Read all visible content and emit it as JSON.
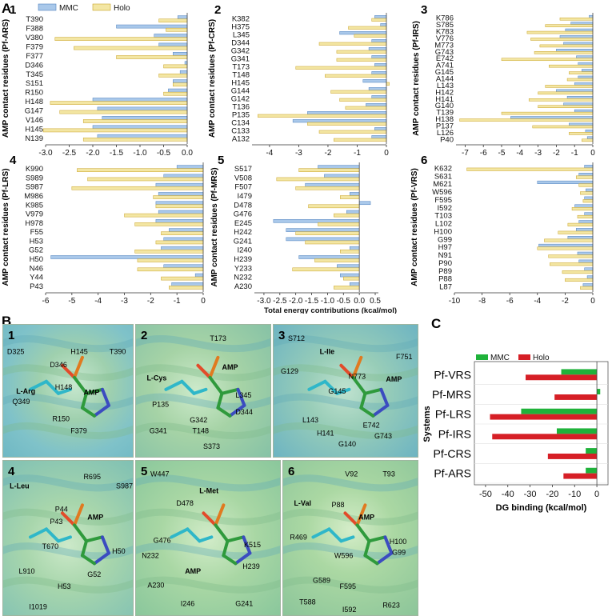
{
  "figure": {
    "panelA_letter": "A",
    "panelB_letter": "B",
    "panelC_letter": "C",
    "legend_mmc": "MMC",
    "legend_holo": "Holo",
    "shared_xlabel": "Total energy contributions (kcal/mol)",
    "colors": {
      "mmc": "#a9c8ea",
      "mmc_edge": "#4f81bd",
      "holo": "#f3e6a3",
      "holo_edge": "#c9a227",
      "c_mmc": "#1fb23a",
      "c_holo": "#d61f26"
    }
  },
  "chart_data": [
    {
      "type": "bar",
      "orientation": "horizontal",
      "panel": "1",
      "ylabel": "AMP contact residues (Pf-ARS)",
      "categories": [
        "T390",
        "F388",
        "V380",
        "F379",
        "F377",
        "D346",
        "T345",
        "S151",
        "R150",
        "H148",
        "G147",
        "V146",
        "H145",
        "N139"
      ],
      "xlim": [
        -3.0,
        0.0
      ],
      "xticks": [
        "-3.0",
        "-2.5",
        "-2.0",
        "-1.5",
        "-1.0",
        "-0.5",
        "0.0"
      ],
      "xtick_values": [
        -3.0,
        -2.5,
        -2.0,
        -1.5,
        -1.0,
        -0.5,
        0.0
      ],
      "series": [
        {
          "name": "MMC",
          "values": [
            -0.2,
            -1.5,
            -0.7,
            -0.6,
            -0.3,
            -0.05,
            -0.15,
            -0.3,
            -0.4,
            -2.0,
            -1.9,
            -1.8,
            -2.0,
            -1.9
          ]
        },
        {
          "name": "Holo",
          "values": [
            -0.6,
            -0.45,
            -2.8,
            -2.4,
            -1.5,
            -0.5,
            -0.6,
            -0.3,
            -0.5,
            -2.9,
            -2.7,
            -2.2,
            -3.05,
            -2.2
          ]
        }
      ]
    },
    {
      "type": "bar",
      "orientation": "horizontal",
      "panel": "2",
      "ylabel": "AMP contact residues (Pf-CRS)",
      "categories": [
        "K382",
        "H375",
        "L345",
        "D344",
        "G342",
        "G341",
        "T173",
        "T148",
        "H145",
        "G144",
        "G142",
        "T136",
        "P135",
        "C134",
        "C133",
        "A132"
      ],
      "xlim": [
        -4.6,
        0.0
      ],
      "xticks": [
        "-4",
        "-3",
        "-2",
        "-1",
        "0"
      ],
      "xtick_values": [
        -4,
        -3,
        -2,
        -1,
        0
      ],
      "series": [
        {
          "name": "MMC",
          "values": [
            -0.4,
            -0.2,
            -1.6,
            -0.5,
            -0.6,
            -0.5,
            -0.4,
            -0.5,
            -0.8,
            -0.6,
            -0.5,
            -0.7,
            -2.7,
            -3.2,
            -0.4,
            -0.5
          ]
        },
        {
          "name": "Holo",
          "values": [
            -0.5,
            -1.3,
            -1.1,
            -2.3,
            -1.7,
            -1.7,
            -3.1,
            -2.1,
            0.1,
            -1.9,
            -1.6,
            -1.4,
            -4.4,
            -2.7,
            -2.3,
            -1.8
          ]
        }
      ]
    },
    {
      "type": "bar",
      "orientation": "horizontal",
      "panel": "3",
      "ylabel": "AMP contact residues (Pf-IRS)",
      "categories": [
        "K786",
        "S785",
        "K783",
        "V776",
        "M773",
        "G743",
        "E742",
        "A741",
        "G145",
        "A144",
        "L143",
        "H142",
        "H141",
        "G140",
        "T139",
        "H138",
        "P137",
        "L126",
        "P40"
      ],
      "xlim": [
        -7.5,
        0.0
      ],
      "xticks": [
        "-7",
        "-6",
        "-5",
        "-4",
        "-3",
        "-2",
        "-1",
        "0"
      ],
      "xtick_values": [
        -7,
        -6,
        -5,
        -4,
        -3,
        -2,
        -1,
        0
      ],
      "series": [
        {
          "name": "MMC",
          "values": [
            -0.2,
            -1.2,
            -1.5,
            -1.8,
            -1.6,
            -2.0,
            -0.9,
            -0.8,
            -0.6,
            -0.8,
            -1.0,
            -2.0,
            -1.4,
            -1.6,
            -1.0,
            -4.5,
            -1.3,
            -0.4,
            -0.3
          ]
        },
        {
          "name": "Holo",
          "values": [
            -1.8,
            -2.6,
            -3.6,
            -3.4,
            -2.9,
            -3.2,
            -5.0,
            -2.4,
            -1.3,
            -1.4,
            -2.6,
            -3.0,
            -3.5,
            -3.0,
            -5.0,
            -7.3,
            -3.3,
            -1.3,
            -0.6
          ]
        }
      ]
    },
    {
      "type": "bar",
      "orientation": "horizontal",
      "panel": "4",
      "ylabel": "AMP contact residues (Pf-LRS)",
      "categories": [
        "K990",
        "S989",
        "S987",
        "M986",
        "K985",
        "V979",
        "H978",
        "F55",
        "H53",
        "G52",
        "H50",
        "N46",
        "Y44",
        "P43"
      ],
      "xlim": [
        -6.0,
        0.0
      ],
      "xticks": [
        "-6",
        "-5",
        "-4",
        "-3",
        "-2",
        "-1",
        "0"
      ],
      "xtick_values": [
        -6,
        -5,
        -4,
        -3,
        -2,
        -1,
        0
      ],
      "series": [
        {
          "name": "MMC",
          "values": [
            -1.0,
            -1.5,
            -1.8,
            -1.7,
            -1.8,
            -1.7,
            -1.8,
            -1.3,
            -1.5,
            -1.6,
            -5.8,
            -1.5,
            -0.3,
            -1.2
          ]
        },
        {
          "name": "Holo",
          "values": [
            -4.8,
            -4.4,
            -5.0,
            -1.9,
            -1.8,
            -3.0,
            -2.6,
            -1.6,
            -1.8,
            -2.6,
            -2.5,
            -2.5,
            -1.6,
            -1.3
          ]
        }
      ]
    },
    {
      "type": "bar",
      "orientation": "horizontal",
      "panel": "5",
      "ylabel": "AMP contact residues (Pf-MRS)",
      "categories": [
        "S517",
        "V508",
        "F507",
        "I479",
        "D478",
        "G476",
        "E245",
        "H242",
        "G241",
        "I240",
        "H239",
        "Y233",
        "N232",
        "A230"
      ],
      "xlim": [
        -3.3,
        0.6
      ],
      "xticks": [
        "-3.0",
        "-2.5",
        "-2.0",
        "-1.5",
        "-1.0",
        "-0.5",
        "0.0",
        "0.5"
      ],
      "xtick_values": [
        -3.0,
        -2.5,
        -2.0,
        -1.5,
        -1.0,
        -0.5,
        0.0,
        0.5
      ],
      "series": [
        {
          "name": "MMC",
          "values": [
            -1.3,
            -1.1,
            -1.7,
            -0.3,
            0.35,
            -0.4,
            -2.7,
            -2.3,
            -2.3,
            -0.3,
            -1.9,
            -0.7,
            -0.6,
            -0.3
          ]
        },
        {
          "name": "Holo",
          "values": [
            -1.9,
            -2.6,
            -2.0,
            -0.6,
            -1.6,
            -0.8,
            -1.3,
            -2.0,
            -1.7,
            -0.6,
            -1.4,
            -2.1,
            -0.5,
            -0.8
          ]
        }
      ]
    },
    {
      "type": "bar",
      "orientation": "horizontal",
      "panel": "6",
      "ylabel": "AMP contact residues (Pf-VRS)",
      "categories": [
        "K632",
        "S631",
        "M621",
        "W596",
        "F595",
        "I592",
        "T103",
        "L102",
        "H100",
        "G99",
        "H97",
        "N91",
        "P90",
        "P89",
        "P88",
        "L87"
      ],
      "xlim": [
        -10.0,
        0.0
      ],
      "xticks": [
        "-10",
        "-8",
        "-6",
        "-4",
        "-2",
        "0"
      ],
      "xtick_values": [
        -10,
        -8,
        -6,
        -4,
        -2,
        0
      ],
      "series": [
        {
          "name": "MMC",
          "values": [
            -0.6,
            -1.0,
            -4.0,
            -0.5,
            -0.6,
            -1.3,
            -0.6,
            -1.0,
            -1.2,
            -1.8,
            -3.9,
            -1.1,
            -1.0,
            -0.6,
            -0.4,
            -0.7
          ]
        },
        {
          "name": "Holo",
          "values": [
            -9.1,
            -1.2,
            -1.0,
            -0.9,
            -0.7,
            -1.5,
            -1.1,
            -1.8,
            -2.5,
            -3.5,
            -4.0,
            -3.2,
            -3.1,
            -2.2,
            -2.0,
            -0.9
          ]
        }
      ]
    },
    {
      "type": "bar",
      "orientation": "horizontal",
      "panel": "C",
      "title": "",
      "ylabel": "Systems",
      "xlabel": "DG binding (kcal/mol)",
      "categories": [
        "Pf-VRS",
        "Pf-MRS",
        "Pf-LRS",
        "Pf-IRS",
        "Pf-CRS",
        "Pf-ARS"
      ],
      "xlim": [
        -55,
        5
      ],
      "xticks": [
        "-50",
        "-40",
        "-30",
        "-20",
        "-10",
        "0"
      ],
      "xtick_values": [
        -50,
        -40,
        -30,
        -20,
        -10,
        0
      ],
      "series": [
        {
          "name": "MMC",
          "values": [
            -16,
            1.5,
            -34,
            -18,
            -5,
            -5
          ]
        },
        {
          "name": "Holo",
          "values": [
            -32,
            -19,
            -48,
            -47,
            -22,
            -15
          ]
        }
      ]
    }
  ],
  "panelB": {
    "panels": [
      {
        "num": "1",
        "labels": [
          "D325",
          "D346",
          "H145",
          "T390",
          "L-Arg",
          "Q349",
          "H148",
          "AMP",
          "R150",
          "F379"
        ]
      },
      {
        "num": "2",
        "labels": [
          "T173",
          "AMP",
          "L-Cys",
          "L345",
          "P135",
          "D344",
          "G342",
          "G341",
          "T148",
          "S373"
        ]
      },
      {
        "num": "3",
        "labels": [
          "S712",
          "L-Ile",
          "F751",
          "G129",
          "N773",
          "AMP",
          "G145",
          "L143",
          "E742",
          "H141",
          "G140",
          "G743"
        ]
      },
      {
        "num": "4",
        "labels": [
          "L-Leu",
          "R695",
          "S987",
          "P44",
          "P43",
          "AMP",
          "T670",
          "H50",
          "L910",
          "G52",
          "H53",
          "I1019"
        ]
      },
      {
        "num": "5",
        "labels": [
          "W447",
          "L-Met",
          "D478",
          "G476",
          "K515",
          "N232",
          "AMP",
          "H239",
          "A230",
          "I246",
          "G241"
        ]
      },
      {
        "num": "6",
        "labels": [
          "V92",
          "T93",
          "L-Val",
          "P88",
          "AMP",
          "R469",
          "H100",
          "G99",
          "W596",
          "G589",
          "F595",
          "T588",
          "I592",
          "R623"
        ]
      }
    ]
  }
}
